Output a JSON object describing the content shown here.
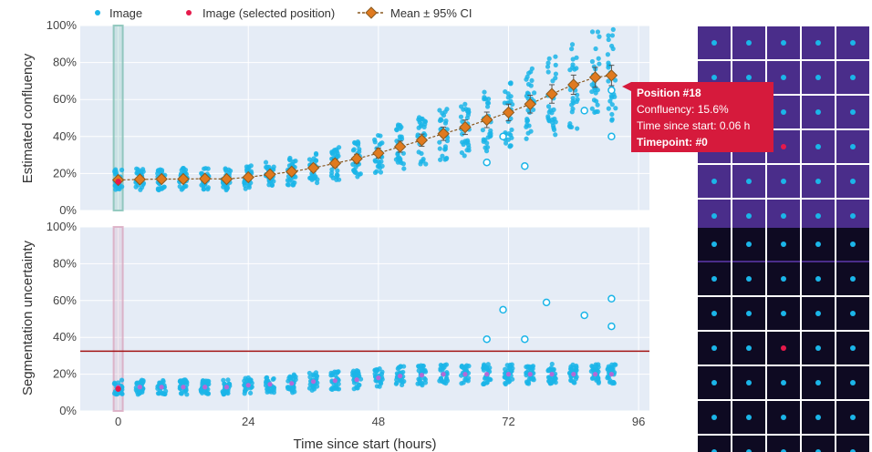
{
  "legend": {
    "image": "Image",
    "selected": "Image (selected position)",
    "mean": "Mean ± 95% CI"
  },
  "tooltip": {
    "title": "Position #18",
    "line1": "Confluency: 15.6%",
    "line2": "Time since start: 0.06 h",
    "line3": "Timepoint: #0"
  },
  "colors": {
    "image": "#1bb5e8",
    "selected": "#e6194b",
    "mean_fill": "#e07a1f",
    "mean_line": "#8a5a20",
    "threshold": "#a31515",
    "plot_bg": "#e5ecf6",
    "tooltip_bg": "#d61a3c",
    "grid_cell_top": "#4a2d8a",
    "grid_cell_bottom": "#0e0a22"
  },
  "chart_data": [
    {
      "type": "scatter",
      "title": "",
      "xlabel": "",
      "ylabel": "Estimated confluency",
      "xlim": [
        -7,
        98
      ],
      "ylim": [
        0,
        100
      ],
      "x_ticks": [
        0,
        24,
        48,
        72,
        96
      ],
      "y_ticks": [
        0,
        20,
        40,
        60,
        80,
        100
      ],
      "y_tick_labels": [
        "0%",
        "20%",
        "40%",
        "60%",
        "80%",
        "100%"
      ],
      "selected_time": 0,
      "series": [
        {
          "name": "Mean ± 95% CI",
          "x": [
            0,
            4,
            8,
            12,
            16,
            20,
            24,
            28,
            32,
            36,
            40,
            44,
            48,
            52,
            56,
            60,
            64,
            68,
            72,
            76,
            80,
            84,
            88,
            91
          ],
          "y": [
            16.5,
            16.8,
            17,
            17,
            17.2,
            17,
            18,
            19.5,
            21,
            23,
            25.5,
            28,
            31,
            34.5,
            38,
            41.5,
            45,
            49,
            53,
            57.5,
            63,
            68,
            72,
            73
          ],
          "ci": [
            1.5,
            1.5,
            1.5,
            1.5,
            1.5,
            1.5,
            1.5,
            1.7,
            1.8,
            2,
            2.2,
            2.4,
            2.7,
            3,
            3.3,
            3.6,
            3.9,
            4.2,
            4.5,
            4.8,
            5,
            5.2,
            5.4,
            5.5
          ]
        }
      ],
      "outliers": [
        {
          "x": 68,
          "y": 26
        },
        {
          "x": 71,
          "y": 40
        },
        {
          "x": 75,
          "y": 24
        },
        {
          "x": 86,
          "y": 54
        },
        {
          "x": 91,
          "y": 65
        },
        {
          "x": 91,
          "y": 40
        }
      ],
      "selected_point": {
        "x": 0,
        "y": 15.6
      }
    },
    {
      "type": "scatter",
      "title": "",
      "xlabel": "Time since start (hours)",
      "ylabel": "Segmentation uncertainty",
      "xlim": [
        -7,
        98
      ],
      "ylim": [
        0,
        100
      ],
      "x_ticks": [
        0,
        24,
        48,
        72,
        96
      ],
      "x_tick_labels": [
        "0",
        "24",
        "48",
        "72",
        "96"
      ],
      "y_ticks": [
        0,
        20,
        40,
        60,
        80,
        100
      ],
      "y_tick_labels": [
        "0%",
        "20%",
        "40%",
        "60%",
        "80%",
        "100%"
      ],
      "threshold": 32.5,
      "selected_time": 0,
      "series": [
        {
          "name": "Image",
          "x": [
            0,
            4,
            8,
            12,
            16,
            20,
            24,
            28,
            32,
            36,
            40,
            44,
            48,
            52,
            56,
            60,
            64,
            68,
            72,
            76,
            80,
            84,
            88,
            91
          ],
          "y": [
            13,
            13,
            13,
            13,
            13,
            13,
            14,
            14.5,
            15,
            16,
            16.5,
            17,
            18,
            19,
            19.5,
            20,
            20,
            20,
            20,
            20,
            20,
            20,
            20,
            20
          ],
          "spread": [
            4,
            4,
            4,
            4,
            4,
            4,
            4.5,
            4.5,
            5,
            5,
            5,
            5,
            5,
            5.5,
            5.5,
            5.5,
            5.5,
            5.5,
            5.5,
            5.5,
            5.5,
            5.5,
            5.5,
            5.5
          ]
        }
      ],
      "outliers": [
        {
          "x": 68,
          "y": 39
        },
        {
          "x": 71,
          "y": 55
        },
        {
          "x": 75,
          "y": 39
        },
        {
          "x": 79,
          "y": 59
        },
        {
          "x": 86,
          "y": 52
        },
        {
          "x": 91,
          "y": 61
        },
        {
          "x": 91,
          "y": 46
        }
      ],
      "selected_point": {
        "x": 0,
        "y": 12
      }
    }
  ],
  "thumbnails": {
    "rows": 7,
    "cols": 5,
    "selected_row": 3,
    "selected_col": 2
  }
}
